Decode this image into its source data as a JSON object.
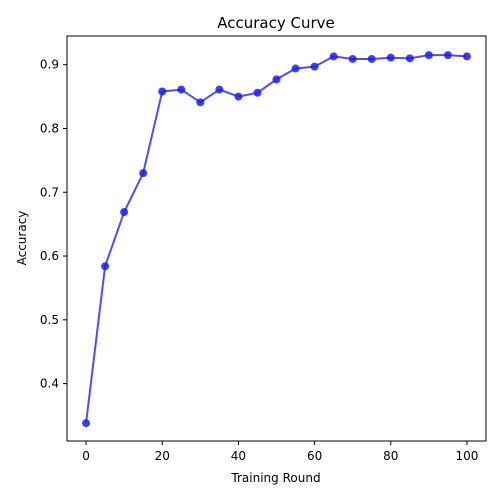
{
  "chart_data": {
    "type": "line",
    "title": "Accuracy Curve",
    "xlabel": "Training Round",
    "ylabel": "Accuracy",
    "xlim": [
      -5,
      105
    ],
    "ylim": [
      0.31,
      0.945
    ],
    "xticks": [
      0,
      20,
      40,
      60,
      80,
      100
    ],
    "yticks": [
      0.4,
      0.5,
      0.6,
      0.7,
      0.8,
      0.9
    ],
    "grid": false,
    "colors": {
      "line": "#2f2ff0",
      "marker": "#1f1fe6"
    },
    "series": [
      {
        "x": [
          0,
          5,
          10,
          15,
          20,
          25,
          30,
          35,
          40,
          45,
          50,
          55,
          60,
          65,
          70,
          75,
          80,
          85,
          90,
          95,
          100
        ],
        "y": [
          0.338,
          0.584,
          0.669,
          0.73,
          0.858,
          0.861,
          0.841,
          0.861,
          0.85,
          0.856,
          0.877,
          0.894,
          0.897,
          0.913,
          0.909,
          0.909,
          0.911,
          0.91,
          0.915,
          0.915,
          0.913
        ]
      }
    ]
  }
}
